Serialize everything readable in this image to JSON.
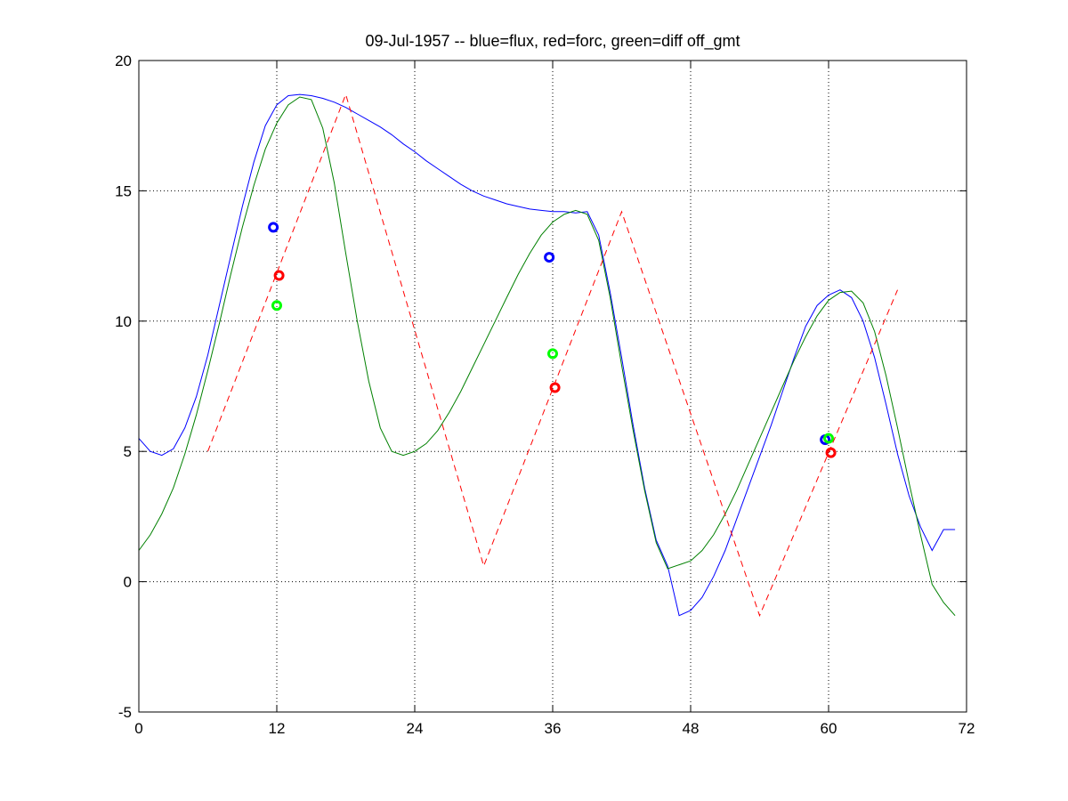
{
  "chart_data": {
    "type": "line",
    "title": "09-Jul-1957 -- blue=flux, red=forc, green=diff off_gmt",
    "xlabel": "",
    "ylabel": "",
    "xlim": [
      0,
      72
    ],
    "ylim": [
      -5,
      20
    ],
    "xticks": [
      0,
      12,
      24,
      36,
      48,
      60,
      72
    ],
    "yticks": [
      -5,
      0,
      5,
      10,
      15,
      20
    ],
    "grid": true,
    "grid_x_lines": [
      12,
      24,
      36,
      48,
      60
    ],
    "grid_y_lines": [
      0,
      5,
      10,
      15
    ],
    "series": [
      {
        "color": "#0000ff",
        "style": "solid",
        "x": [
          0,
          1,
          2,
          3,
          4,
          5,
          6,
          7,
          8,
          9,
          10,
          11,
          12,
          13,
          14,
          15,
          16,
          17,
          18,
          19,
          20,
          21,
          22,
          23,
          24,
          25,
          26,
          27,
          28,
          29,
          30,
          31,
          32,
          33,
          34,
          35,
          36,
          37,
          38,
          39,
          40,
          41,
          42,
          43,
          44,
          45,
          46,
          47,
          48,
          49,
          50,
          51,
          52,
          53,
          54,
          55,
          56,
          57,
          58,
          59,
          60,
          61,
          62,
          63,
          64,
          65,
          66,
          67,
          68,
          69,
          70,
          71
        ],
        "values": [
          5.5,
          5.0,
          4.85,
          5.1,
          5.9,
          7.1,
          8.7,
          10.6,
          12.5,
          14.4,
          16.1,
          17.5,
          18.3,
          18.65,
          18.7,
          18.65,
          18.55,
          18.4,
          18.2,
          17.95,
          17.7,
          17.45,
          17.15,
          16.8,
          16.5,
          16.15,
          15.85,
          15.55,
          15.25,
          15.0,
          14.8,
          14.65,
          14.5,
          14.4,
          14.3,
          14.25,
          14.2,
          14.2,
          14.15,
          14.2,
          13.3,
          11.1,
          8.6,
          6.0,
          3.6,
          1.6,
          0.6,
          -1.3,
          -1.1,
          -0.6,
          0.2,
          1.2,
          2.4,
          3.6,
          4.8,
          6.0,
          7.3,
          8.6,
          9.8,
          10.6,
          11.0,
          11.2,
          10.9,
          10.0,
          8.6,
          6.8,
          4.9,
          3.3,
          2.1,
          1.2,
          2.0,
          2.0
        ]
      },
      {
        "color": "#008000",
        "style": "solid",
        "x": [
          0,
          1,
          2,
          3,
          4,
          5,
          6,
          7,
          8,
          9,
          10,
          11,
          12,
          13,
          14,
          15,
          16,
          17,
          18,
          19,
          20,
          21,
          22,
          23,
          24,
          25,
          26,
          27,
          28,
          29,
          30,
          31,
          32,
          33,
          34,
          35,
          36,
          37,
          38,
          39,
          40,
          41,
          42,
          43,
          44,
          45,
          46,
          47,
          48,
          49,
          50,
          51,
          52,
          53,
          54,
          55,
          56,
          57,
          58,
          59,
          60,
          61,
          62,
          63,
          64,
          65,
          66,
          67,
          68,
          69,
          70,
          71
        ],
        "values": [
          1.2,
          1.8,
          2.6,
          3.6,
          4.9,
          6.4,
          8.1,
          9.9,
          11.8,
          13.6,
          15.2,
          16.6,
          17.6,
          18.3,
          18.6,
          18.5,
          17.4,
          15.3,
          12.6,
          10.0,
          7.7,
          5.9,
          5.0,
          4.85,
          5.0,
          5.3,
          5.8,
          6.5,
          7.3,
          8.2,
          9.1,
          10.0,
          10.9,
          11.8,
          12.6,
          13.3,
          13.8,
          14.1,
          14.25,
          14.1,
          13.1,
          10.9,
          8.3,
          5.8,
          3.5,
          1.5,
          0.5,
          0.65,
          0.8,
          1.2,
          1.8,
          2.6,
          3.5,
          4.5,
          5.5,
          6.5,
          7.5,
          8.5,
          9.4,
          10.2,
          10.8,
          11.1,
          11.15,
          10.7,
          9.6,
          7.9,
          5.9,
          3.8,
          1.8,
          -0.1,
          -0.8,
          -1.3
        ]
      },
      {
        "color": "#ff0000",
        "style": "dashed",
        "x": [
          6,
          18,
          30,
          42,
          54,
          66
        ],
        "values": [
          5.0,
          18.7,
          0.6,
          14.2,
          -1.3,
          11.2
        ]
      }
    ],
    "markers": [
      {
        "x": 11.7,
        "y": 13.6,
        "color": "#0000ff"
      },
      {
        "x": 12.2,
        "y": 11.75,
        "color": "#ff0000"
      },
      {
        "x": 12.0,
        "y": 10.6,
        "color": "#00ff00"
      },
      {
        "x": 35.7,
        "y": 12.45,
        "color": "#0000ff"
      },
      {
        "x": 36.2,
        "y": 7.45,
        "color": "#ff0000"
      },
      {
        "x": 36.0,
        "y": 8.75,
        "color": "#00ff00"
      },
      {
        "x": 59.7,
        "y": 5.45,
        "color": "#0000ff"
      },
      {
        "x": 60.2,
        "y": 4.95,
        "color": "#ff0000"
      },
      {
        "x": 60.0,
        "y": 5.5,
        "color": "#00ff00"
      }
    ]
  }
}
